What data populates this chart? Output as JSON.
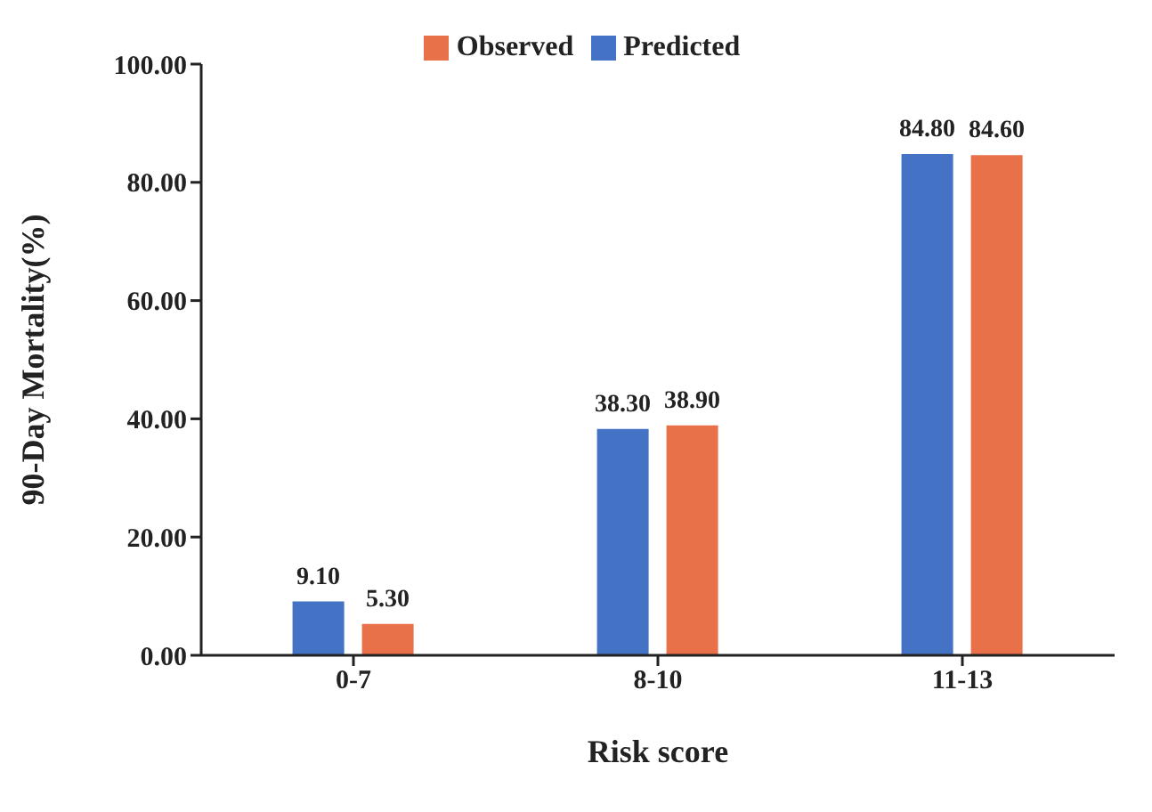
{
  "chart_data": {
    "type": "bar",
    "xlabel": "Risk score",
    "ylabel": "90-Day Mortality(%)",
    "categories": [
      "0-7",
      "8-10",
      "11-13"
    ],
    "series": [
      {
        "name": "Predicted",
        "color": "#4472c4",
        "values": [
          9.1,
          38.3,
          84.8
        ],
        "value_labels": [
          "9.10",
          "38.30",
          "84.80"
        ]
      },
      {
        "name": "Observed",
        "color": "#e8714a",
        "values": [
          5.3,
          38.9,
          84.6
        ],
        "value_labels": [
          "5.30",
          "38.90",
          "84.60"
        ]
      }
    ],
    "ylim": [
      0,
      100
    ],
    "yticks": [
      {
        "value": 0,
        "label": "0.00"
      },
      {
        "value": 20,
        "label": "20.00"
      },
      {
        "value": 40,
        "label": "40.00"
      },
      {
        "value": 60,
        "label": "60.00"
      },
      {
        "value": 80,
        "label": "80.00"
      },
      {
        "value": 100,
        "label": "100.00"
      }
    ],
    "grid": false,
    "legend": "top"
  }
}
